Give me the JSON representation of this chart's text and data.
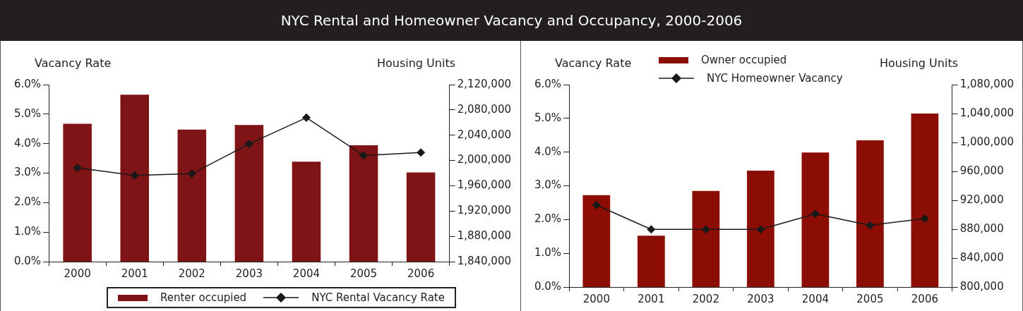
{
  "chart_data": [
    {
      "type": "bar",
      "title": "NYC Rental and Homeowner Vacancy and Occupancy, 2000-2006",
      "ylabel": "Vacancy Rate",
      "y2label": "Housing Units",
      "categories": [
        "2000",
        "2001",
        "2002",
        "2003",
        "2004",
        "2005",
        "2006"
      ],
      "series": [
        {
          "name": "Renter occupied",
          "axis": "y2",
          "color": "#7f1416",
          "values": [
            2058000,
            2104000,
            2049000,
            2056000,
            1998000,
            2024000,
            1981000
          ]
        },
        {
          "name": "NYC Rental Vacancy Rate",
          "type": "line",
          "axis": "y",
          "color": "#1a1a1a",
          "marker": "diamond",
          "values": [
            3.18,
            2.92,
            2.98,
            3.99,
            4.88,
            3.6,
            3.7
          ]
        }
      ],
      "ylim": [
        0,
        6
      ],
      "yticks": [
        {
          "value": 0,
          "label": "0.0%"
        },
        {
          "value": 1,
          "label": "1.0%"
        },
        {
          "value": 2,
          "label": "2.0%"
        },
        {
          "value": 3,
          "label": "3.0%"
        },
        {
          "value": 4,
          "label": "4.0%"
        },
        {
          "value": 5,
          "label": "5.0%"
        },
        {
          "value": 6,
          "label": "6.0%"
        }
      ],
      "y2lim": [
        1840000,
        2120000
      ],
      "y2ticks": [
        {
          "value": 1840000,
          "label": "1,840,000"
        },
        {
          "value": 1880000,
          "label": "1,880,000"
        },
        {
          "value": 1920000,
          "label": "1,920,000"
        },
        {
          "value": 1960000,
          "label": "1,960,000"
        },
        {
          "value": 2000000,
          "label": "2,000,000"
        },
        {
          "value": 2040000,
          "label": "2,040,000"
        },
        {
          "value": 2080000,
          "label": "2,080,000"
        },
        {
          "value": 2120000,
          "label": "2,120,000"
        }
      ],
      "legend": "bottom",
      "grid": false
    },
    {
      "type": "bar",
      "ylabel": "Vacancy Rate",
      "y2label": "Housing Units",
      "categories": [
        "2000",
        "2001",
        "2002",
        "2003",
        "2004",
        "2005",
        "2006"
      ],
      "series": [
        {
          "name": "Owner occupied",
          "axis": "y2",
          "color": "#8b0d04",
          "values": [
            927000,
            871000,
            933000,
            961000,
            986000,
            1003000,
            1040000
          ]
        },
        {
          "name": "NYC Homeowner Vacancy",
          "type": "line",
          "axis": "y",
          "color": "#1a1a1a",
          "marker": "diamond",
          "values": [
            2.43,
            1.71,
            1.71,
            1.71,
            2.17,
            1.83,
            2.03
          ]
        }
      ],
      "ylim": [
        0,
        6
      ],
      "yticks": [
        {
          "value": 0,
          "label": "0.0%"
        },
        {
          "value": 1,
          "label": "1.0%"
        },
        {
          "value": 2,
          "label": "2.0%"
        },
        {
          "value": 3,
          "label": "3.0%"
        },
        {
          "value": 4,
          "label": "4.0%"
        },
        {
          "value": 5,
          "label": "5.0%"
        },
        {
          "value": 6,
          "label": "6.0%"
        }
      ],
      "y2lim": [
        800000,
        1080000
      ],
      "y2ticks": [
        {
          "value": 800000,
          "label": "800,000"
        },
        {
          "value": 840000,
          "label": "840,000"
        },
        {
          "value": 880000,
          "label": "880,000"
        },
        {
          "value": 920000,
          "label": "920,000"
        },
        {
          "value": 960000,
          "label": "960,000"
        },
        {
          "value": 1000000,
          "label": "1,000,000"
        },
        {
          "value": 1040000,
          "label": "1,040,000"
        },
        {
          "value": 1080000,
          "label": "1,080,000"
        }
      ],
      "legend": "top left",
      "grid": false
    }
  ]
}
